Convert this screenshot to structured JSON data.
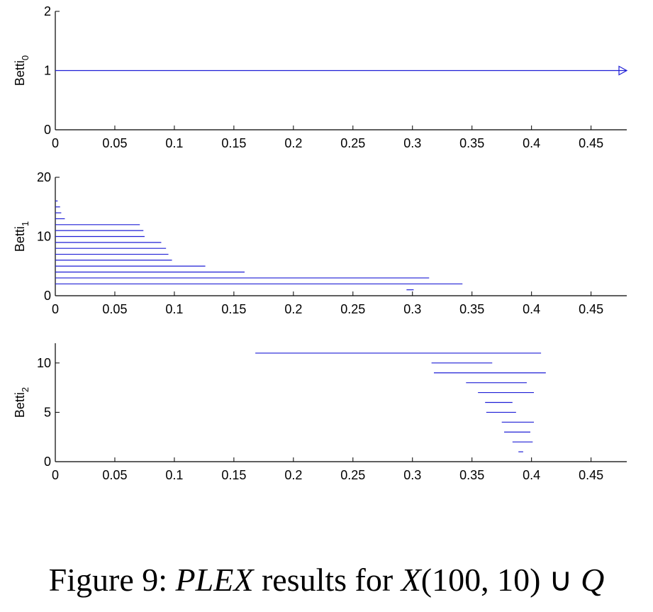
{
  "chart_data": [
    {
      "type": "barcode",
      "ylabel": "Betti",
      "ylabel_subscript": "0",
      "xlim": [
        0,
        0.48
      ],
      "ylim": [
        0,
        2
      ],
      "xticks": [
        "0",
        "0.05",
        "0.1",
        "0.15",
        "0.2",
        "0.25",
        "0.3",
        "0.35",
        "0.4",
        "0.45"
      ],
      "yticks": [
        "0",
        "1",
        "2"
      ],
      "color": "#1f1fd6",
      "intervals": [
        {
          "y": 1,
          "start": 0,
          "end": 0.48,
          "infinite": true
        }
      ]
    },
    {
      "type": "barcode",
      "ylabel": "Betti",
      "ylabel_subscript": "1",
      "xlim": [
        0,
        0.48
      ],
      "ylim": [
        0,
        20
      ],
      "xticks": [
        "0",
        "0.05",
        "0.1",
        "0.15",
        "0.2",
        "0.25",
        "0.3",
        "0.35",
        "0.4",
        "0.45"
      ],
      "yticks": [
        "0",
        "10",
        "20"
      ],
      "color": "#1f1fd6",
      "intervals": [
        {
          "y": 1,
          "start": 0.295,
          "end": 0.301
        },
        {
          "y": 2,
          "start": 0,
          "end": 0.342
        },
        {
          "y": 3,
          "start": 0,
          "end": 0.314
        },
        {
          "y": 4,
          "start": 0,
          "end": 0.159
        },
        {
          "y": 5,
          "start": 0,
          "end": 0.126
        },
        {
          "y": 6,
          "start": 0,
          "end": 0.098
        },
        {
          "y": 7,
          "start": 0,
          "end": 0.095
        },
        {
          "y": 8,
          "start": 0,
          "end": 0.093
        },
        {
          "y": 9,
          "start": 0,
          "end": 0.089
        },
        {
          "y": 10,
          "start": 0,
          "end": 0.075
        },
        {
          "y": 11,
          "start": 0,
          "end": 0.074
        },
        {
          "y": 12,
          "start": 0,
          "end": 0.071
        },
        {
          "y": 13,
          "start": 0,
          "end": 0.008
        },
        {
          "y": 14,
          "start": 0,
          "end": 0.005
        },
        {
          "y": 15,
          "start": 0,
          "end": 0.004
        },
        {
          "y": 16,
          "start": 0,
          "end": 0.002
        }
      ]
    },
    {
      "type": "barcode",
      "ylabel": "Betti",
      "ylabel_subscript": "2",
      "xlim": [
        0,
        0.48
      ],
      "ylim": [
        0,
        12
      ],
      "xticks": [
        "0",
        "0.05",
        "0.1",
        "0.15",
        "0.2",
        "0.25",
        "0.3",
        "0.35",
        "0.4",
        "0.45"
      ],
      "yticks": [
        "0",
        "5",
        "10"
      ],
      "color": "#1f1fd6",
      "intervals": [
        {
          "y": 1,
          "start": 0.389,
          "end": 0.393
        },
        {
          "y": 2,
          "start": 0.384,
          "end": 0.401
        },
        {
          "y": 3,
          "start": 0.377,
          "end": 0.399
        },
        {
          "y": 4,
          "start": 0.375,
          "end": 0.402
        },
        {
          "y": 5,
          "start": 0.362,
          "end": 0.387
        },
        {
          "y": 6,
          "start": 0.361,
          "end": 0.384
        },
        {
          "y": 7,
          "start": 0.355,
          "end": 0.402
        },
        {
          "y": 8,
          "start": 0.345,
          "end": 0.396
        },
        {
          "y": 9,
          "start": 0.318,
          "end": 0.412
        },
        {
          "y": 10,
          "start": 0.316,
          "end": 0.367
        },
        {
          "y": 11,
          "start": 0.168,
          "end": 0.408
        }
      ]
    }
  ],
  "caption": {
    "prefix": "Figure 9: ",
    "math1": "PLEX",
    "middle": " results for ",
    "math2": "X",
    "args": "(100, 10)",
    "op": " ∪ ",
    "math3": "Q"
  }
}
